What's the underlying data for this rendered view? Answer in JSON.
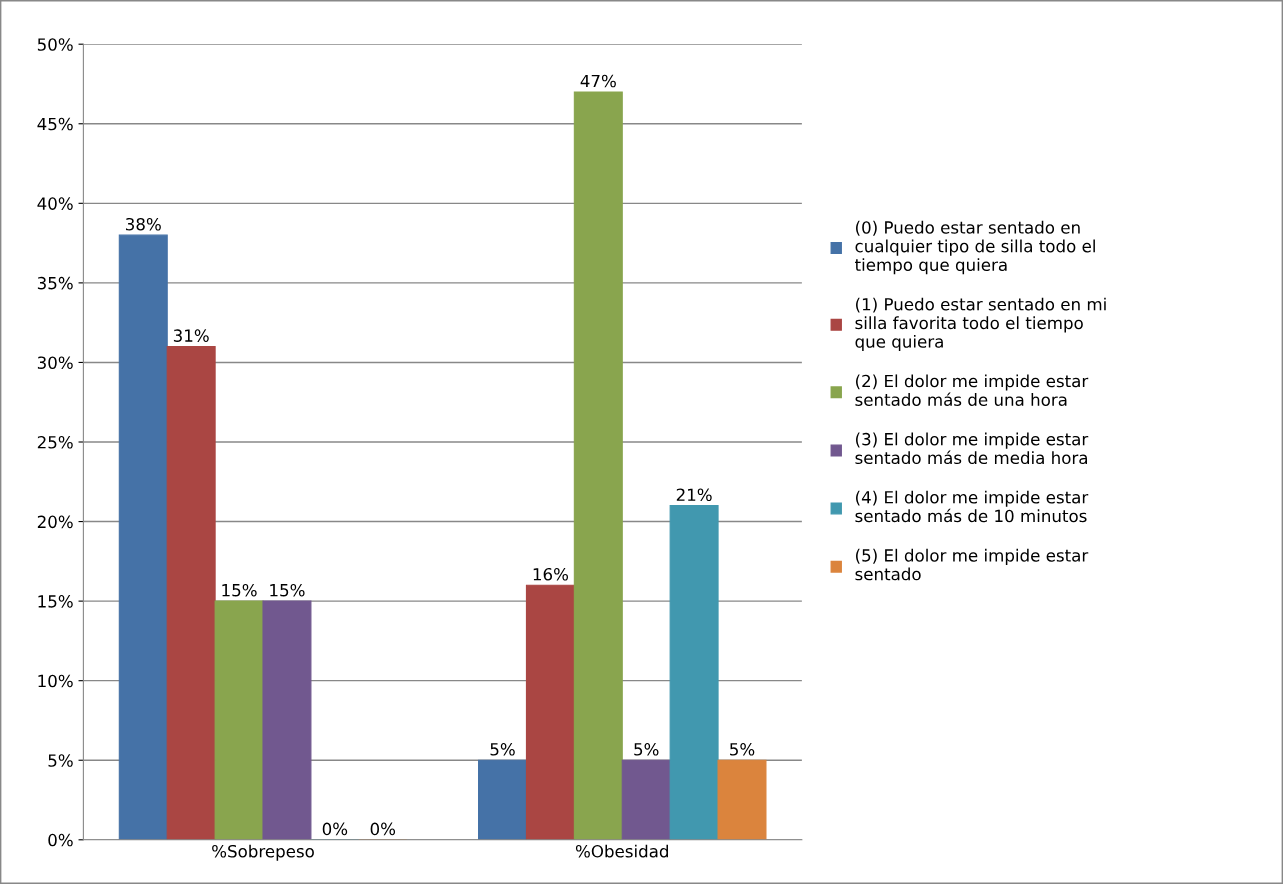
{
  "chart_data": {
    "type": "bar",
    "categories": [
      "%Sobrepeso",
      "%Obesidad"
    ],
    "series": [
      {
        "name": "(0) Puedo estar sentado en cualquier tipo de silla todo el tiempo que quiera",
        "color": "#4572a7",
        "values": [
          38,
          5
        ],
        "value_labels": [
          "38%",
          "5%"
        ]
      },
      {
        "name": "(1) Puedo estar sentado en mi silla favorita todo el tiempo que quiera",
        "color": "#aa4643",
        "values": [
          31,
          16
        ],
        "value_labels": [
          "31%",
          "16%"
        ]
      },
      {
        "name": "(2) El dolor me impide estar sentado más de una hora",
        "color": "#89a54e",
        "values": [
          15,
          47
        ],
        "value_labels": [
          "15%",
          "47%"
        ]
      },
      {
        "name": "(3) El dolor me impide estar sentado más de media hora",
        "color": "#71588f",
        "values": [
          15,
          5
        ],
        "value_labels": [
          "15%",
          "5%"
        ]
      },
      {
        "name": "(4) El dolor me impide estar sentado más de 10 minutos",
        "color": "#4198af",
        "values": [
          0,
          21
        ],
        "value_labels": [
          "0%",
          "21%"
        ]
      },
      {
        "name": "(5) El dolor me impide estar sentado",
        "color": "#db843d",
        "values": [
          0,
          5
        ],
        "value_labels": [
          "0%",
          "5%"
        ]
      }
    ],
    "ylim": [
      0,
      50
    ],
    "yticks": [
      {
        "value": 0,
        "label": "0%"
      },
      {
        "value": 5,
        "label": "5%"
      },
      {
        "value": 10,
        "label": "10%"
      },
      {
        "value": 15,
        "label": "15%"
      },
      {
        "value": 20,
        "label": "20%"
      },
      {
        "value": 25,
        "label": "25%"
      },
      {
        "value": 30,
        "label": "30%"
      },
      {
        "value": 35,
        "label": "35%"
      },
      {
        "value": 40,
        "label": "40%"
      },
      {
        "value": 45,
        "label": "45%"
      },
      {
        "value": 50,
        "label": "50%"
      }
    ],
    "grid": "y",
    "legend": "right"
  }
}
